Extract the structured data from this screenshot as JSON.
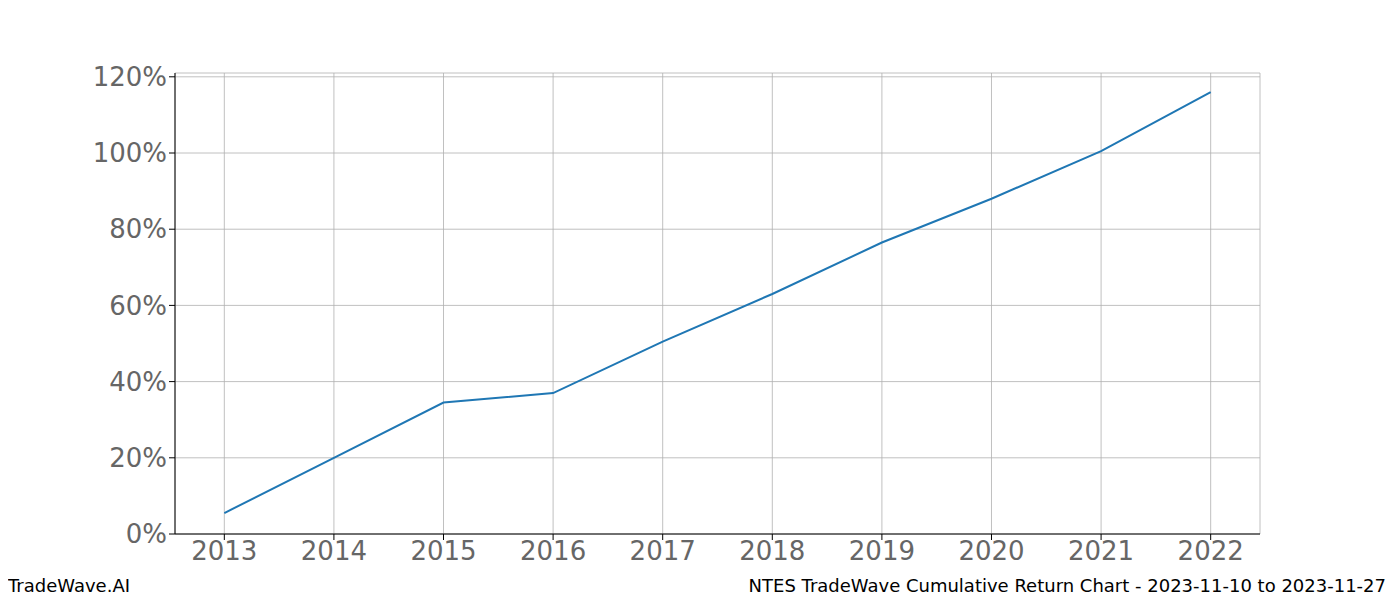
{
  "chart_data": {
    "type": "line",
    "title": "NTES TradeWave Cumulative Return Chart - 2023-11-10 to 2023-11-27",
    "annotations": [
      "TradeWave.AI"
    ],
    "x": [
      2013,
      2014,
      2015,
      2016,
      2017,
      2018,
      2019,
      2020,
      2021,
      2022
    ],
    "values": [
      5.5,
      20,
      34.5,
      37,
      50.5,
      63,
      76.5,
      88,
      100.5,
      116
    ],
    "color": "#1f77b4",
    "xlim": [
      2012.55,
      2022.45
    ],
    "xticks": [
      2013,
      2014,
      2015,
      2016,
      2017,
      2018,
      2019,
      2020,
      2021,
      2022
    ],
    "ylim": [
      0,
      121
    ],
    "yticks": [
      {
        "value": 0,
        "label": "0%"
      },
      {
        "value": 20,
        "label": "20%"
      },
      {
        "value": 40,
        "label": "40%"
      },
      {
        "value": 60,
        "label": "60%"
      },
      {
        "value": 80,
        "label": "80%"
      },
      {
        "value": 100,
        "label": "100%"
      },
      {
        "value": 120,
        "label": "120%"
      }
    ],
    "grid": true
  }
}
